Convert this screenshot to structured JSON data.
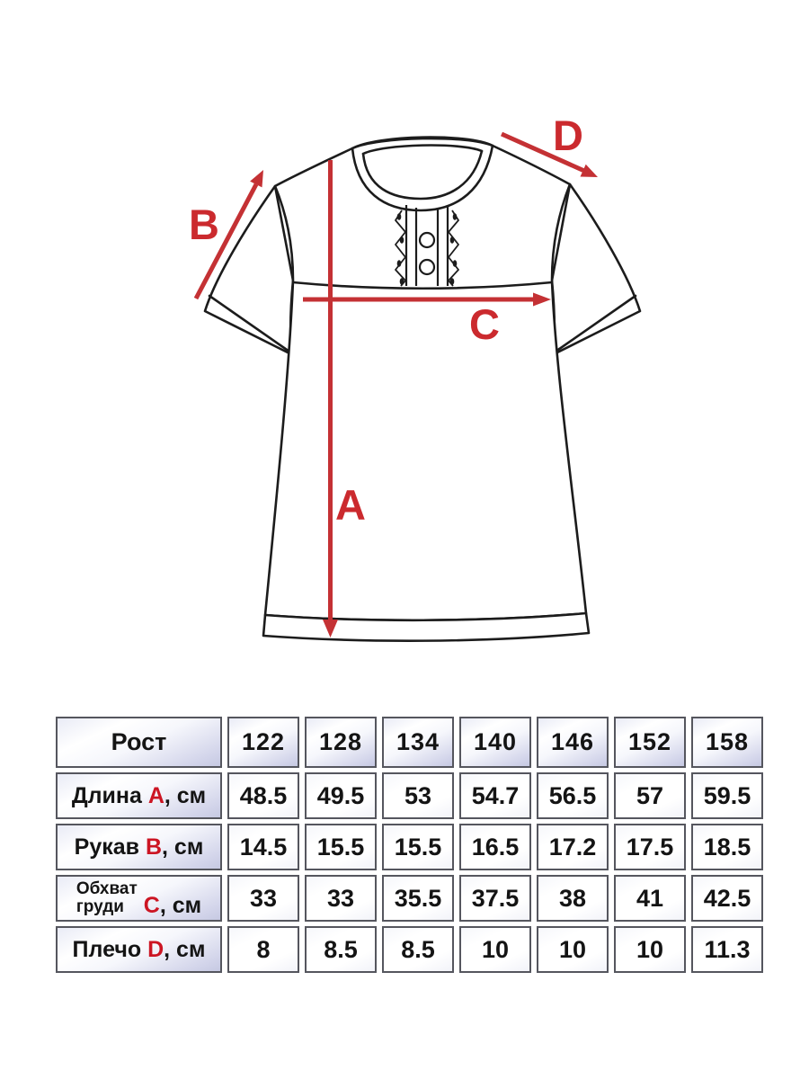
{
  "diagram": {
    "arrow_labels": {
      "length": "A",
      "sleeve": "B",
      "chest": "C",
      "shoulder": "D"
    },
    "colors": {
      "arrow_red": "#c43134",
      "letter_red": "#cc1523",
      "outline": "#1c1c1c"
    }
  },
  "table": {
    "corner_header": "Рост",
    "size_columns": [
      "122",
      "128",
      "134",
      "140",
      "146",
      "152",
      "158"
    ],
    "rows": [
      {
        "label_lines": [
          "Длина"
        ],
        "letter": "A",
        "suffix": ", см",
        "values": [
          "48.5",
          "49.5",
          "53",
          "54.7",
          "56.5",
          "57",
          "59.5"
        ]
      },
      {
        "label_lines": [
          "Рукав"
        ],
        "letter": "B",
        "suffix": ", см",
        "values": [
          "14.5",
          "15.5",
          "15.5",
          "16.5",
          "17.2",
          "17.5",
          "18.5"
        ]
      },
      {
        "label_lines": [
          "Обхват",
          "груди"
        ],
        "letter": "C",
        "suffix": ", см",
        "values": [
          "33",
          "33",
          "35.5",
          "37.5",
          "38",
          "41",
          "42.5"
        ]
      },
      {
        "label_lines": [
          "Плечо"
        ],
        "letter": "D",
        "suffix": ", см",
        "values": [
          "8",
          "8.5",
          "8.5",
          "10",
          "10",
          "10",
          "11.3"
        ]
      }
    ]
  }
}
